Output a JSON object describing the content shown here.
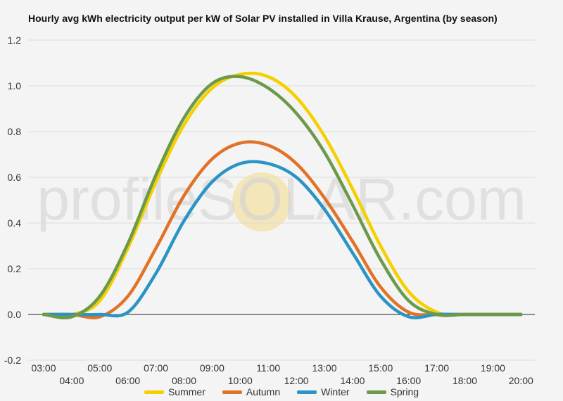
{
  "title": "Hourly avg kWh electricity output per kW of Solar PV installed in Villa Krause, Argentina (by season)",
  "watermark": "profileSOLAR.com",
  "chart_data": {
    "type": "line",
    "title": "Hourly avg kWh electricity output per kW of Solar PV installed in Villa Krause, Argentina (by season)",
    "xlabel": "",
    "ylabel": "",
    "x": [
      "03:00",
      "04:00",
      "05:00",
      "06:00",
      "07:00",
      "08:00",
      "09:00",
      "10:00",
      "11:00",
      "12:00",
      "13:00",
      "14:00",
      "15:00",
      "16:00",
      "17:00",
      "18:00",
      "19:00",
      "20:00"
    ],
    "y_ticks": [
      "1.2",
      "1.0",
      "0.8",
      "0.6",
      "0.4",
      "0.2",
      "0.0",
      "-0.2"
    ],
    "ylim": [
      -0.2,
      1.2
    ],
    "grid": true,
    "legend_position": "bottom",
    "series": [
      {
        "name": "Summer",
        "color": "#f5d000",
        "values": [
          0,
          0,
          0.06,
          0.29,
          0.58,
          0.83,
          0.99,
          1.05,
          1.04,
          0.95,
          0.78,
          0.55,
          0.3,
          0.1,
          0.01,
          0,
          0,
          0
        ]
      },
      {
        "name": "Autumn",
        "color": "#e07327",
        "values": [
          0,
          0,
          -0.01,
          0.08,
          0.29,
          0.52,
          0.68,
          0.75,
          0.74,
          0.66,
          0.51,
          0.32,
          0.12,
          0.01,
          0,
          0,
          0,
          0
        ]
      },
      {
        "name": "Winter",
        "color": "#2a95c4",
        "values": [
          0,
          0,
          0,
          0.01,
          0.18,
          0.41,
          0.58,
          0.66,
          0.66,
          0.6,
          0.46,
          0.27,
          0.08,
          -0.01,
          0,
          0,
          0,
          0
        ]
      },
      {
        "name": "Spring",
        "color": "#6c9a4a",
        "values": [
          0,
          -0.01,
          0.08,
          0.31,
          0.61,
          0.86,
          1.01,
          1.04,
          0.99,
          0.88,
          0.71,
          0.48,
          0.24,
          0.06,
          0,
          0,
          0,
          0
        ]
      }
    ]
  }
}
